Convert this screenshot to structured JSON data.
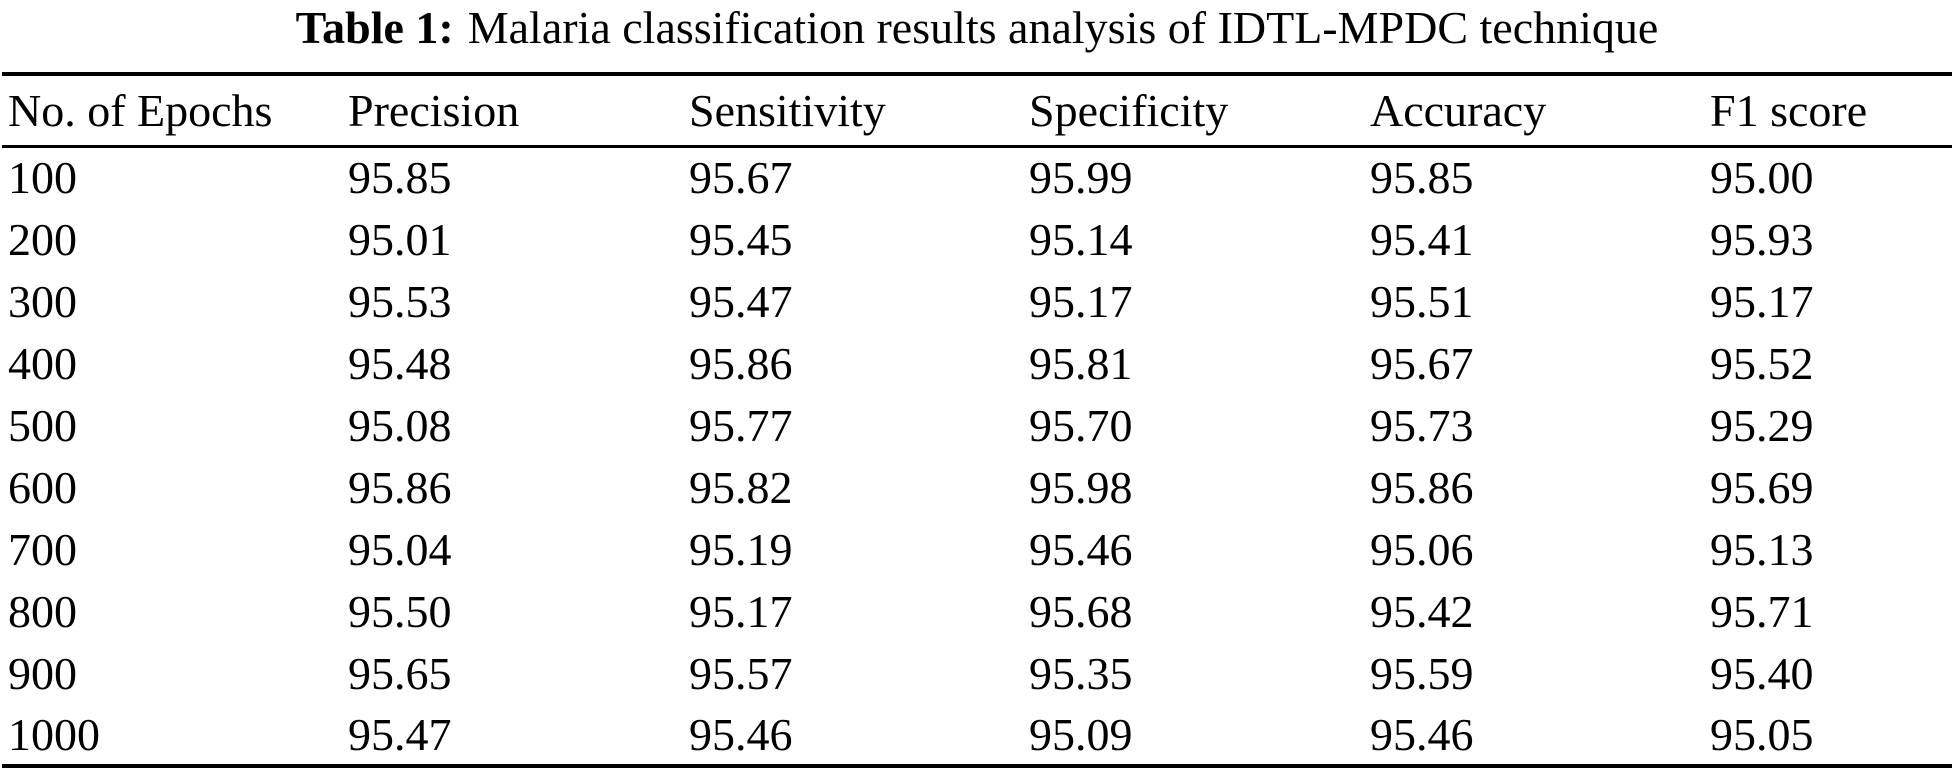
{
  "title": {
    "label": "Table 1:",
    "text": "Malaria classification results analysis of IDTL-MPDC technique"
  },
  "table": {
    "columns": [
      "No. of Epochs",
      "Precision",
      "Sensitivity",
      "Specificity",
      "Accuracy",
      "F1 score"
    ],
    "rows": [
      [
        "100",
        "95.85",
        "95.67",
        "95.99",
        "95.85",
        "95.00"
      ],
      [
        "200",
        "95.01",
        "95.45",
        "95.14",
        "95.41",
        "95.93"
      ],
      [
        "300",
        "95.53",
        "95.47",
        "95.17",
        "95.51",
        "95.17"
      ],
      [
        "400",
        "95.48",
        "95.86",
        "95.81",
        "95.67",
        "95.52"
      ],
      [
        "500",
        "95.08",
        "95.77",
        "95.70",
        "95.73",
        "95.29"
      ],
      [
        "600",
        "95.86",
        "95.82",
        "95.98",
        "95.86",
        "95.69"
      ],
      [
        "700",
        "95.04",
        "95.19",
        "95.46",
        "95.06",
        "95.13"
      ],
      [
        "800",
        "95.50",
        "95.17",
        "95.68",
        "95.42",
        "95.71"
      ],
      [
        "900",
        "95.65",
        "95.57",
        "95.35",
        "95.59",
        "95.40"
      ],
      [
        "1000",
        "95.47",
        "95.46",
        "95.09",
        "95.46",
        "95.05"
      ]
    ]
  }
}
